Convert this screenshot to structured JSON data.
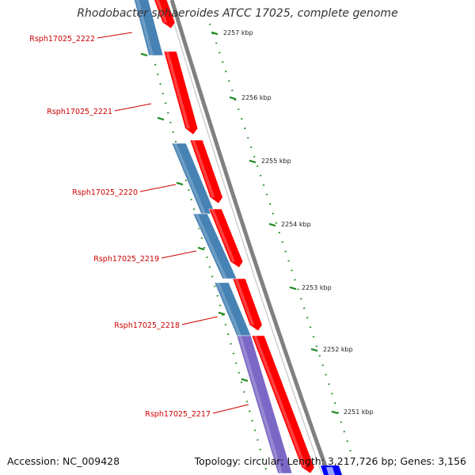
{
  "title": "Rhodobacter sphaeroides ATCC 17025, complete genome",
  "footer": {
    "accession": "Accession: NC_009428",
    "summary": "Topology: circular; Length: 3,217,726 bp; Genes: 3,156"
  },
  "colors": {
    "forward_cds": "#ff0000",
    "reverse_cds": "#4682b4",
    "reverse_cds_alt": "#7b68c6",
    "backbone": "#808080",
    "ticks": "#228b22",
    "label": "#cc0000",
    "extra_feature": "#0000ff"
  },
  "scale_labels": [
    "2257 kbp",
    "2256 kbp",
    "2255 kbp",
    "2254 kbp",
    "2253 kbp",
    "2252 kbp",
    "2251 kbp"
  ],
  "gene_labels": [
    "Rsph17025_2222",
    "Rsph17025_2221",
    "Rsph17025_2220",
    "Rsph17025_2219",
    "Rsph17025_2218",
    "Rsph17025_2217"
  ]
}
